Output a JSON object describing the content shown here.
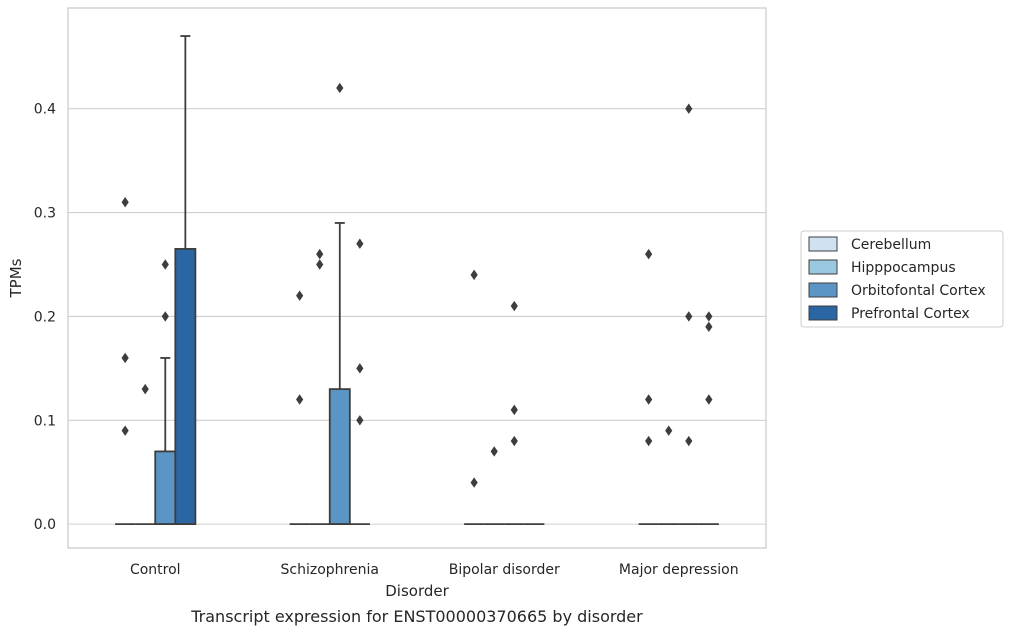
{
  "chart_data": {
    "type": "box",
    "caption": "Transcript expression for ENST00000370665 by disorder",
    "xlabel": "Disorder",
    "ylabel": "TPMs",
    "ylim": [
      -0.023,
      0.497
    ],
    "yticks": [
      0.0,
      0.1,
      0.2,
      0.3,
      0.4
    ],
    "yticklabels": [
      "0.0",
      "0.1",
      "0.2",
      "0.3",
      "0.4"
    ],
    "grid": "horizontal",
    "legend_position": "right",
    "categories": [
      "Control",
      "Schizophrenia",
      "Bipolar disorder",
      "Major depression"
    ],
    "series": [
      {
        "name": "Cerebellum",
        "color": "#d0e2f2",
        "boxes": [
          {
            "q1": 0,
            "median": 0,
            "q3": 0,
            "whisker_low": 0,
            "whisker_high": 0,
            "outliers": [
              0.09,
              0.16,
              0.31
            ]
          },
          {
            "q1": 0,
            "median": 0,
            "q3": 0,
            "whisker_low": 0,
            "whisker_high": 0,
            "outliers": [
              0.12,
              0.22
            ]
          },
          {
            "q1": 0,
            "median": 0,
            "q3": 0,
            "whisker_low": 0,
            "whisker_high": 0,
            "outliers": [
              0.04,
              0.24
            ]
          },
          {
            "q1": 0,
            "median": 0,
            "q3": 0,
            "whisker_low": 0,
            "whisker_high": 0,
            "outliers": [
              0.08,
              0.12,
              0.26
            ]
          }
        ]
      },
      {
        "name": "Hipppocampus",
        "color": "#9ac8e0",
        "boxes": [
          {
            "q1": 0,
            "median": 0,
            "q3": 0,
            "whisker_low": 0,
            "whisker_high": 0,
            "outliers": [
              0.13
            ]
          },
          {
            "q1": 0,
            "median": 0,
            "q3": 0,
            "whisker_low": 0,
            "whisker_high": 0,
            "outliers": [
              0.25,
              0.26
            ]
          },
          {
            "q1": 0,
            "median": 0,
            "q3": 0,
            "whisker_low": 0,
            "whisker_high": 0,
            "outliers": [
              0.07
            ]
          },
          {
            "q1": 0,
            "median": 0,
            "q3": 0,
            "whisker_low": 0,
            "whisker_high": 0,
            "outliers": [
              0.09
            ]
          }
        ]
      },
      {
        "name": "Orbitofontal Cortex",
        "color": "#5a95c5",
        "boxes": [
          {
            "q1": 0,
            "median": 0,
            "q3": 0.07,
            "whisker_low": 0,
            "whisker_high": 0.16,
            "outliers": [
              0.2,
              0.25
            ]
          },
          {
            "q1": 0,
            "median": 0,
            "q3": 0.13,
            "whisker_low": 0,
            "whisker_high": 0.29,
            "outliers": [
              0.42
            ]
          },
          {
            "q1": 0,
            "median": 0,
            "q3": 0,
            "whisker_low": 0,
            "whisker_high": 0,
            "outliers": [
              0.08,
              0.11,
              0.21
            ]
          },
          {
            "q1": 0,
            "median": 0,
            "q3": 0,
            "whisker_low": 0,
            "whisker_high": 0,
            "outliers": [
              0.08,
              0.2,
              0.4
            ]
          }
        ]
      },
      {
        "name": "Prefrontal Cortex",
        "color": "#2a66a3",
        "boxes": [
          {
            "q1": 0,
            "median": 0,
            "q3": 0.265,
            "whisker_low": 0,
            "whisker_high": 0.47,
            "outliers": []
          },
          {
            "q1": 0,
            "median": 0,
            "q3": 0,
            "whisker_low": 0,
            "whisker_high": 0,
            "outliers": [
              0.1,
              0.15,
              0.27
            ]
          },
          {
            "q1": 0,
            "median": 0,
            "q3": 0,
            "whisker_low": 0,
            "whisker_high": 0,
            "outliers": []
          },
          {
            "q1": 0,
            "median": 0,
            "q3": 0,
            "whisker_low": 0,
            "whisker_high": 0,
            "outliers": [
              0.12,
              0.19,
              0.2
            ]
          }
        ]
      }
    ]
  },
  "colors": {
    "box_edge": "#3d3d3d",
    "grid": "#d0d0d0",
    "axes_edge": "#cccccc",
    "text": "#262626"
  }
}
